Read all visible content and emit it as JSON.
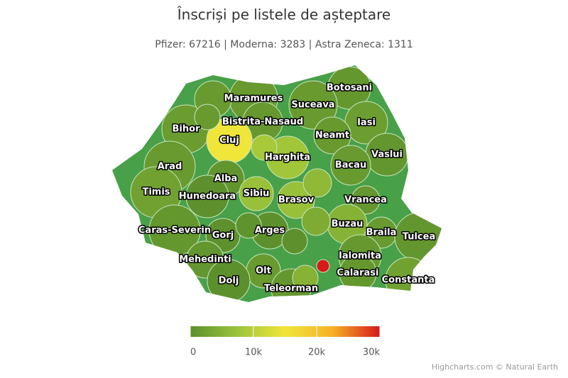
{
  "chart_data": {
    "type": "map",
    "title": "Înscriși pe listele de așteptare",
    "subtitle": "Pfizer: 67216 | Moderna: 3283 | Astra Zeneca: 1311",
    "credits": "Highcharts.com © Natural Earth",
    "colorlim": [
      0,
      30000
    ],
    "colorticks": [
      0,
      {
        "value": 10000,
        "label": "10k"
      },
      {
        "value": 20000,
        "label": "20k"
      },
      {
        "value": 30000,
        "label": "30k"
      }
    ],
    "colors": [
      "#5b8f2d",
      "#9cc43a",
      "#f0e63a",
      "#f5b227",
      "#d61a1a"
    ],
    "regions": [
      {
        "name": "Maramures",
        "value": 1500
      },
      {
        "name": "Botosani",
        "value": 1200
      },
      {
        "name": "Suceava",
        "value": 1500
      },
      {
        "name": "Bistrita-Nasaud",
        "value": 1300
      },
      {
        "name": "Iasi",
        "value": 2000
      },
      {
        "name": "Bihor",
        "value": 1800
      },
      {
        "name": "Cluj",
        "value": 15000
      },
      {
        "name": "Neamt",
        "value": 1400
      },
      {
        "name": "Vaslui",
        "value": 1000
      },
      {
        "name": "Harghita",
        "value": 8000
      },
      {
        "name": "Bacau",
        "value": 1500
      },
      {
        "name": "Arad",
        "value": 1500
      },
      {
        "name": "Alba",
        "value": 800
      },
      {
        "name": "Timis",
        "value": 2500
      },
      {
        "name": "Hunedoara",
        "value": 300
      },
      {
        "name": "Sibiu",
        "value": 7000
      },
      {
        "name": "Brasov",
        "value": 7000
      },
      {
        "name": "Vrancea",
        "value": 1200
      },
      {
        "name": "Buzau",
        "value": 5000
      },
      {
        "name": "Braila",
        "value": 1500
      },
      {
        "name": "Tulcea",
        "value": 1000
      },
      {
        "name": "Caras-Severin",
        "value": 1200
      },
      {
        "name": "Gorj",
        "value": 300
      },
      {
        "name": "Arges",
        "value": 200
      },
      {
        "name": "Ialomita",
        "value": 1300
      },
      {
        "name": "Mehedinti",
        "value": 1000
      },
      {
        "name": "Olt",
        "value": 1500
      },
      {
        "name": "Calarasi",
        "value": 1200
      },
      {
        "name": "Constanta",
        "value": 2500
      },
      {
        "name": "Dolj",
        "value": 100
      },
      {
        "name": "Teleorman",
        "value": 1200
      },
      {
        "name": null,
        "value": 8500
      },
      {
        "name": null,
        "value": 6000
      },
      {
        "name": null,
        "value": 500
      },
      {
        "name": null,
        "value": 300
      },
      {
        "name": null,
        "value": 4000
      },
      {
        "name": null,
        "value": 30000
      },
      {
        "name": null,
        "value": 5000
      },
      {
        "name": null,
        "value": 1500
      },
      {
        "name": null,
        "value": 1500
      }
    ]
  }
}
